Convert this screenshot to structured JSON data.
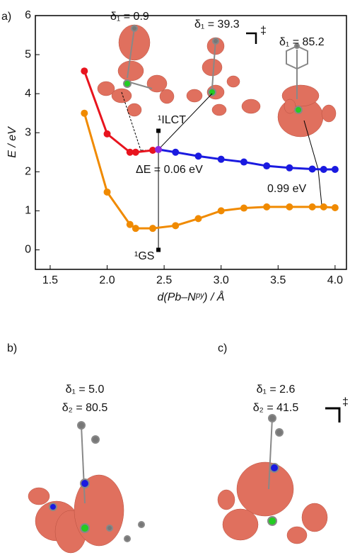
{
  "chart_data": {
    "type": "line",
    "xlabel": "d(Pb–Nᵖʸ) / Å",
    "ylabel": "E / eV",
    "xlim": [
      1.37,
      4.1
    ],
    "ylim": [
      -0.5,
      6
    ],
    "xticks": [
      1.5,
      {
        "value": 2,
        "label": "2.0"
      },
      2.5,
      {
        "value": 3,
        "label": "3.0"
      },
      3.5,
      {
        "value": 4,
        "label": "4.0"
      }
    ],
    "yticks": [
      0,
      1,
      2,
      3,
      4,
      5,
      6
    ],
    "series": [
      {
        "color": "#f08a00",
        "x": [
          1.8,
          2.0,
          2.2,
          2.25,
          2.4,
          2.6,
          2.8,
          3.0,
          3.2,
          3.4,
          3.6,
          3.8,
          3.9,
          4.0
        ],
        "values": [
          3.5,
          1.48,
          0.65,
          0.55,
          0.55,
          0.62,
          0.8,
          1.0,
          1.07,
          1.1,
          1.1,
          1.1,
          1.1,
          1.08
        ]
      },
      {
        "color": "#e8141e",
        "x": [
          1.8,
          2.0,
          2.2,
          2.25,
          2.4
        ],
        "values": [
          4.58,
          2.97,
          2.5,
          2.5,
          2.55
        ]
      },
      {
        "color": "#1a1ae0",
        "x": [
          2.6,
          2.8,
          3.0,
          3.2,
          3.4,
          3.6,
          3.8,
          3.9,
          4.0
        ],
        "values": [
          2.5,
          2.4,
          2.32,
          2.25,
          2.15,
          2.1,
          2.07,
          2.06,
          2.06
        ]
      },
      {
        "color": "#8a2be2",
        "x": [
          2.45
        ],
        "values": [
          2.57
        ]
      }
    ],
    "annotations": [
      "a)",
      "δ₁ = 0.9",
      "δ₁ = 39.3",
      "δ₁ = 85.2",
      "¹ILCT",
      "ΔE = 0.06 eV",
      "0.99 eV",
      "¹GS",
      "‡"
    ]
  },
  "panels": [
    {
      "label": "b)",
      "lines": [
        "δ₁ = 5.0",
        "δ₂ = 80.5"
      ]
    },
    {
      "label": "c)",
      "lines": [
        "δ₁ = 2.6",
        "δ₂ = 41.5"
      ],
      "mark": "‡"
    }
  ]
}
